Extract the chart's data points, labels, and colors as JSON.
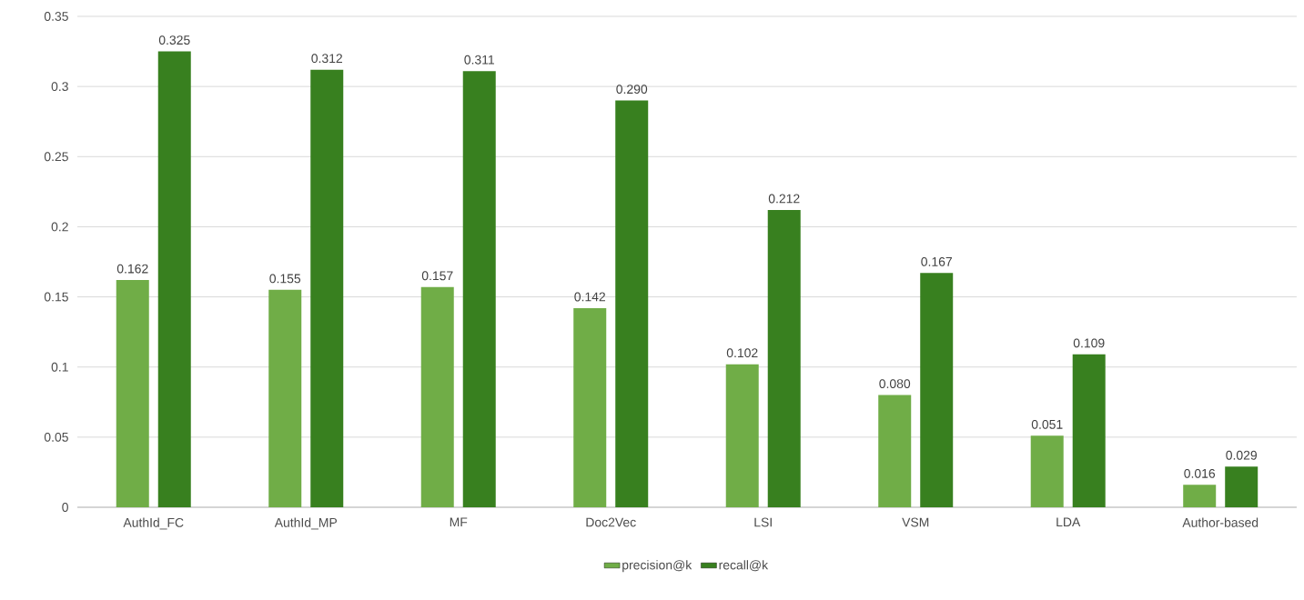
{
  "chart_data": {
    "type": "bar",
    "categories": [
      "AuthId_FC",
      "AuthId_MP",
      "MF",
      "Doc2Vec",
      "LSI",
      "VSM",
      "LDA",
      "Author-based"
    ],
    "series": [
      {
        "name": "precision@k",
        "color": "#70ad47",
        "values": [
          0.162,
          0.155,
          0.157,
          0.142,
          0.102,
          0.08,
          0.051,
          0.016
        ],
        "value_labels": [
          "0.162",
          "0.155",
          "0.157",
          "0.142",
          "0.102",
          "0.080",
          "0.051",
          "0.016"
        ]
      },
      {
        "name": "recall@k",
        "color": "#38801f",
        "values": [
          0.325,
          0.312,
          0.311,
          0.29,
          0.212,
          0.167,
          0.109,
          0.029
        ],
        "value_labels": [
          "0.325",
          "0.312",
          "0.311",
          "0.290",
          "0.212",
          "0.167",
          "0.109",
          "0.029"
        ]
      }
    ],
    "ylim": [
      0,
      0.35
    ],
    "yticks": [
      0,
      0.05,
      0.1,
      0.15,
      0.2,
      0.25,
      0.3,
      0.35
    ],
    "grid": "y",
    "legend": "bottom"
  }
}
